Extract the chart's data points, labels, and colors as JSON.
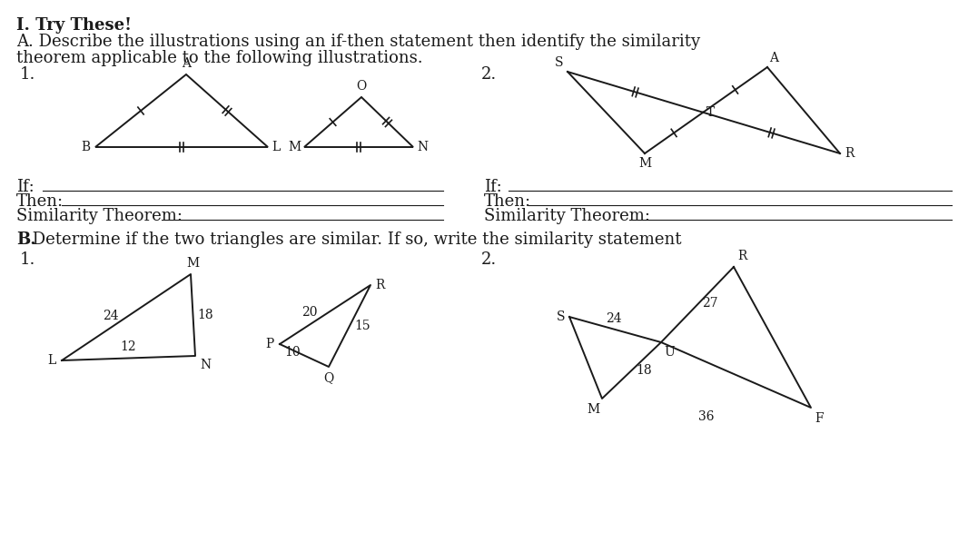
{
  "bg_color": "#ffffff",
  "title_bold": "I. Try These!",
  "line1": "A. Describe the illustrations using an if-then statement then identify the similarity",
  "line2": "theorem applicable to the following illustrations.",
  "section_B_bold": "B.",
  "section_B_rest": " Determine if the two triangles are similar. If so, write the similarity statement",
  "text_color": "#1a1a1a",
  "line_color": "#1a1a1a",
  "font_size_main": 13,
  "font_size_vertex": 10
}
